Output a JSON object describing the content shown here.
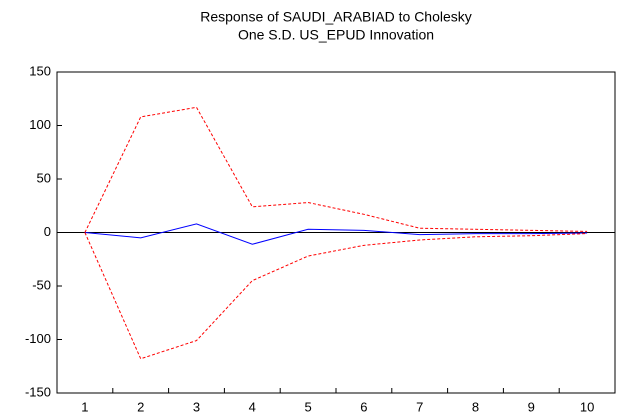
{
  "chart_data": {
    "type": "line",
    "title": [
      "Response of SAUDI_ARABIAD to Cholesky",
      "One S.D. US_EPUD Innovation"
    ],
    "categories": [
      "1",
      "2",
      "3",
      "4",
      "5",
      "6",
      "7",
      "8",
      "9",
      "10"
    ],
    "series": [
      {
        "color": "#ff0000",
        "style": "dashed",
        "values": [
          0,
          108,
          117,
          24,
          28,
          17,
          4,
          3,
          2,
          1
        ]
      },
      {
        "color": "#0000ff",
        "style": "solid",
        "values": [
          0,
          -5,
          8,
          -11,
          3,
          2,
          -2,
          -1,
          -1,
          -0.5
        ]
      },
      {
        "color": "#ff0000",
        "style": "dashed",
        "values": [
          0,
          -118,
          -101,
          -45,
          -22,
          -12,
          -7,
          -4,
          -3,
          -1
        ]
      }
    ],
    "ylim": [
      -150,
      150
    ],
    "yticks": [
      -150,
      -100,
      -50,
      0,
      50,
      100,
      150
    ],
    "zero_line": true
  }
}
